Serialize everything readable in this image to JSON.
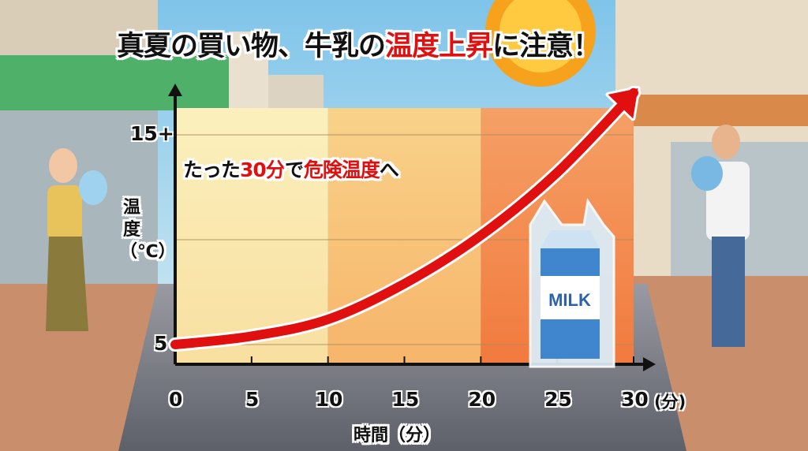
{
  "title": {
    "part1": "真夏の買い物、牛乳の",
    "highlight": "温度上昇",
    "part2": "に注意！"
  },
  "callout": {
    "part1": "たった",
    "highlight1": "30分",
    "part2": "で",
    "highlight2": "危険温度",
    "part3": "へ"
  },
  "carton_label": "MILK",
  "colors": {
    "accent_red": "#e01010",
    "zone_cool": "#fbeeb5",
    "zone_warm": "#f8c77c",
    "zone_hot": "#f47b45"
  },
  "chart_data": {
    "type": "line",
    "title": "真夏の買い物、牛乳の温度上昇に注意！",
    "xlabel": "時間（分）",
    "ylabel": "温度（℃）",
    "x_unit_label": "(分)",
    "xlim": [
      0,
      30
    ],
    "ylim": [
      5,
      15
    ],
    "x_ticks": [
      "0",
      "5",
      "10",
      "15",
      "20",
      "25",
      "30"
    ],
    "y_ticks": [
      {
        "value": 5,
        "label": "5"
      },
      {
        "value": 10,
        "label": ""
      },
      {
        "value": 15,
        "label": "15+"
      }
    ],
    "grid": true,
    "zones": [
      {
        "from": 0,
        "to": 10,
        "color": "#fbeeb5"
      },
      {
        "from": 10,
        "to": 20,
        "color": "#f8c77c"
      },
      {
        "from": 20,
        "to": 30,
        "color": "#f47b45"
      }
    ],
    "series": [
      {
        "color": "#e01010",
        "x": [
          0,
          5,
          10,
          15,
          20,
          25,
          30
        ],
        "y": [
          5,
          5.4,
          6.2,
          7.9,
          10.2,
          13.2,
          17
        ]
      }
    ]
  }
}
